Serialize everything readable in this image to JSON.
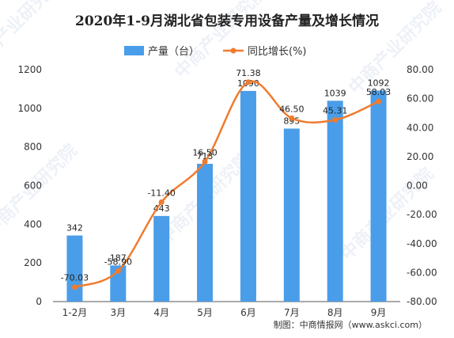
{
  "chart_data": {
    "type": "bar",
    "title": "2020年1-9月湖北省包装专用设备产量及增长情况",
    "categories": [
      "1-2月",
      "3月",
      "4月",
      "5月",
      "6月",
      "7月",
      "8月",
      "9月"
    ],
    "series": [
      {
        "name": "产量（台）",
        "type": "bar",
        "axis": "left",
        "values": [
          342,
          187,
          443,
          713,
          1090,
          895,
          1039,
          1092
        ],
        "labels": [
          "342",
          "187",
          "443",
          "713",
          "1090",
          "895",
          "1039",
          "1092"
        ]
      },
      {
        "name": "同比增长(%)",
        "type": "line",
        "axis": "right",
        "values": [
          -70.03,
          -58.9,
          -11.4,
          16.5,
          71.38,
          46.5,
          45.31,
          58.03
        ],
        "labels": [
          "-70.03",
          "-58.90",
          "-11.40",
          "16.50",
          "71.38",
          "46.50",
          "45.31",
          "58.03"
        ]
      }
    ],
    "y_left": {
      "min": 0,
      "max": 1200,
      "ticks": [
        "0",
        "200",
        "400",
        "600",
        "800",
        "1000",
        "1200"
      ]
    },
    "y_right": {
      "min": -80,
      "max": 80,
      "ticks": [
        "-80.00",
        "-60.00",
        "-40.00",
        "-20.00",
        "0.00",
        "20.00",
        "40.00",
        "60.00",
        "80.00"
      ]
    },
    "colors": {
      "bar": "#4a9de8",
      "line": "#f07b2e"
    },
    "grid": false,
    "legend": "top-center",
    "source": "制图：中商情报网（www.askci.com）",
    "watermark": "中商产业研究院"
  }
}
